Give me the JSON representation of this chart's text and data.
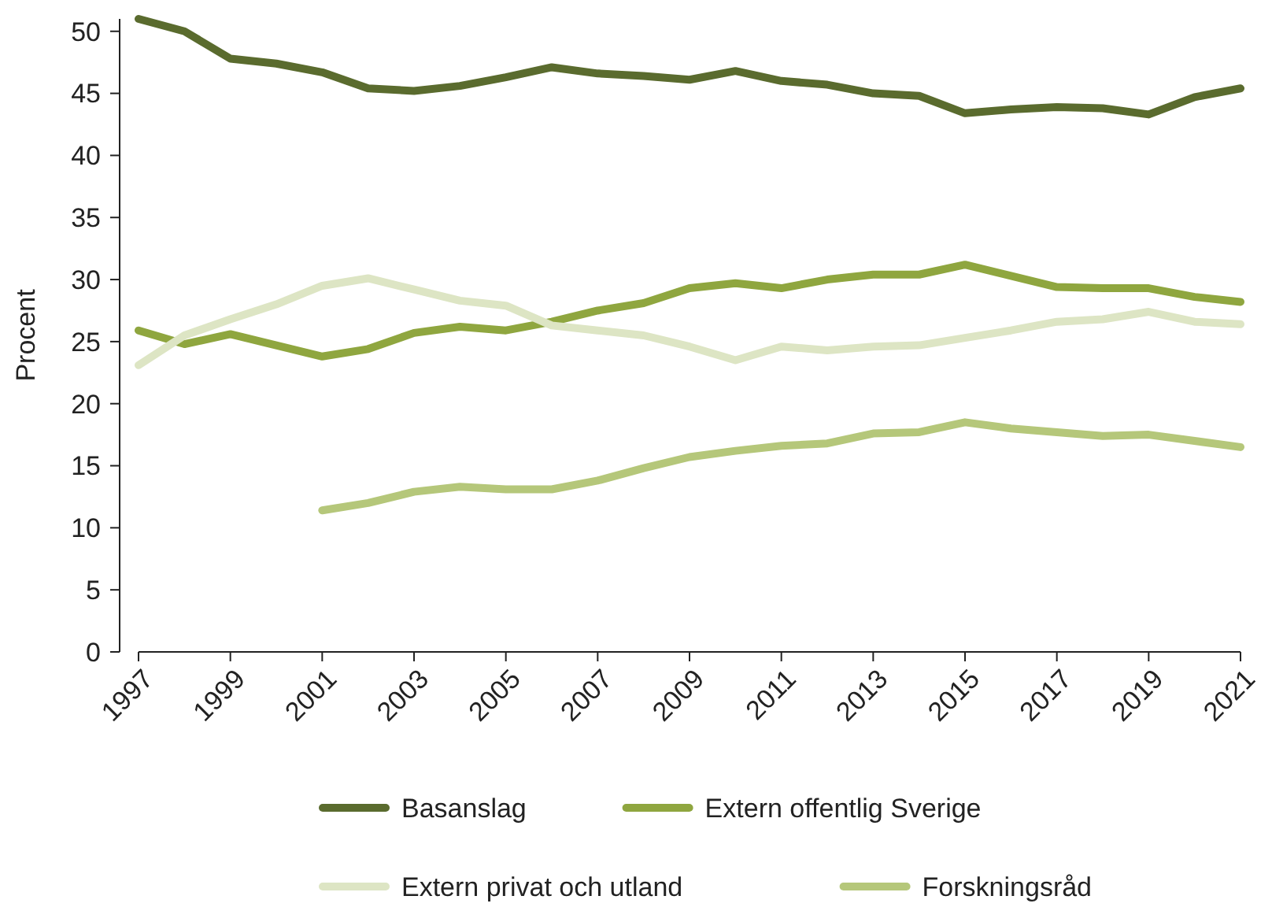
{
  "chart_data": {
    "type": "line",
    "ylabel": "Procent",
    "x": [
      1997,
      1998,
      1999,
      2000,
      2001,
      2002,
      2003,
      2004,
      2005,
      2006,
      2007,
      2008,
      2009,
      2010,
      2011,
      2012,
      2013,
      2014,
      2015,
      2016,
      2017,
      2018,
      2019,
      2020,
      2021
    ],
    "xlim": [
      1997,
      2021
    ],
    "xticks": [
      1997,
      1999,
      2001,
      2003,
      2005,
      2007,
      2009,
      2011,
      2013,
      2015,
      2017,
      2019,
      2021
    ],
    "ylim": [
      0,
      51
    ],
    "yticks": [
      0,
      5,
      10,
      15,
      20,
      25,
      30,
      35,
      40,
      45,
      50
    ],
    "grid": false,
    "legend": "bottom",
    "marker": "none",
    "line_style": "solid",
    "series": [
      {
        "name": "Basanslag",
        "color": "#5a6b2e",
        "values": [
          51,
          50,
          47.8,
          47.4,
          46.7,
          45.4,
          45.2,
          45.6,
          46.3,
          47.1,
          46.6,
          46.4,
          46.1,
          46.8,
          46,
          45.7,
          45,
          44.8,
          43.4,
          43.7,
          43.9,
          43.8,
          43.3,
          44.7,
          45.4
        ]
      },
      {
        "name": "Extern offentlig Sverige",
        "color": "#8fa63f",
        "values": [
          25.9,
          24.8,
          25.6,
          24.7,
          23.8,
          24.4,
          25.7,
          26.2,
          25.9,
          26.6,
          27.5,
          28.1,
          29.3,
          29.7,
          29.3,
          30,
          30.4,
          30.4,
          31.2,
          30.3,
          29.4,
          29.3,
          29.3,
          28.6,
          28.2
        ]
      },
      {
        "name": "Extern privat och utland",
        "color": "#dde5c4",
        "values": [
          23.1,
          25.5,
          26.8,
          28,
          29.5,
          30.1,
          29.2,
          28.3,
          27.9,
          26.3,
          25.9,
          25.5,
          24.6,
          23.5,
          24.6,
          24.3,
          24.6,
          24.7,
          25.3,
          25.9,
          26.6,
          26.8,
          27.4,
          26.6,
          26.4
        ]
      },
      {
        "name": "Forskningsråd",
        "color": "#b5c77a",
        "values": [
          null,
          null,
          null,
          null,
          11.4,
          12,
          12.9,
          13.3,
          13.1,
          13.1,
          13.8,
          14.8,
          15.7,
          16.2,
          16.6,
          16.8,
          17.6,
          17.7,
          18.5,
          18,
          17.7,
          17.4,
          17.5,
          17,
          16.5
        ]
      }
    ]
  }
}
